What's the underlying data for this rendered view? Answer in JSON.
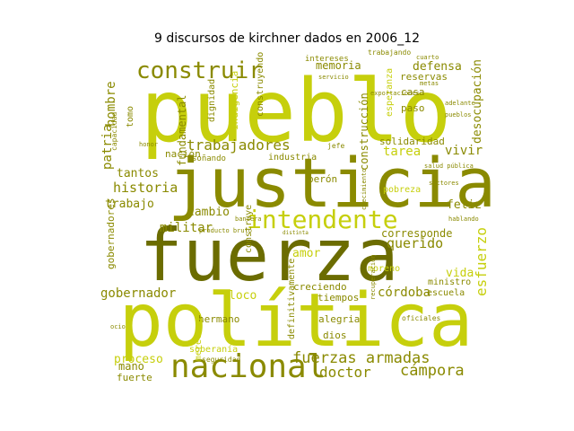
{
  "chart_data": {
    "type": "wordcloud",
    "title": "9 discursos de kirchner dados en 2006_12",
    "palette": {
      "bright": "#c6cf0c",
      "olive": "#8a8a00",
      "mid": "#a6ad0a",
      "dark": "#6b6c00",
      "background": "#ffffff"
    },
    "words": [
      {
        "text": "pueblo",
        "weight": 1.0,
        "color": "bright",
        "orient": "h"
      },
      {
        "text": "justicia",
        "weight": 0.78,
        "color": "olive",
        "orient": "h"
      },
      {
        "text": "fuerza",
        "weight": 0.78,
        "color": "dark",
        "orient": "h"
      },
      {
        "text": "política",
        "weight": 0.78,
        "color": "bright",
        "orient": "h"
      },
      {
        "text": "nacional",
        "weight": 0.42,
        "color": "olive",
        "orient": "h"
      },
      {
        "text": "intendente",
        "weight": 0.36,
        "color": "bright",
        "orient": "h"
      },
      {
        "text": "construir",
        "weight": 0.3,
        "color": "olive",
        "orient": "h"
      },
      {
        "text": "fuerzas armadas",
        "weight": 0.18,
        "color": "olive",
        "orient": "h"
      },
      {
        "text": "trabajadores",
        "weight": 0.17,
        "color": "olive",
        "orient": "h"
      },
      {
        "text": "historia",
        "weight": 0.15,
        "color": "olive",
        "orient": "h"
      },
      {
        "text": "doctor",
        "weight": 0.15,
        "color": "olive",
        "orient": "h"
      },
      {
        "text": "cámpora",
        "weight": 0.15,
        "color": "olive",
        "orient": "h"
      },
      {
        "text": "querido",
        "weight": 0.14,
        "color": "olive",
        "orient": "h"
      },
      {
        "text": "esfuerzo",
        "weight": 0.14,
        "color": "bright",
        "orient": "v"
      },
      {
        "text": "gobernador",
        "weight": 0.12,
        "color": "olive",
        "orient": "h"
      },
      {
        "text": "córdoba",
        "weight": 0.12,
        "color": "olive",
        "orient": "h"
      },
      {
        "text": "militar",
        "weight": 0.12,
        "color": "olive",
        "orient": "h"
      },
      {
        "text": "tarea",
        "weight": 0.12,
        "color": "bright",
        "orient": "h"
      },
      {
        "text": "vivir",
        "weight": 0.12,
        "color": "olive",
        "orient": "h"
      },
      {
        "text": "feliz",
        "weight": 0.1,
        "color": "olive",
        "orient": "h"
      },
      {
        "text": "patria",
        "weight": 0.12,
        "color": "olive",
        "orient": "v"
      },
      {
        "text": "hombre",
        "weight": 0.11,
        "color": "olive",
        "orient": "v"
      },
      {
        "text": "defensa",
        "weight": 0.11,
        "color": "olive",
        "orient": "h"
      },
      {
        "text": "memoria",
        "weight": 0.1,
        "color": "olive",
        "orient": "h"
      },
      {
        "text": "desocupación",
        "weight": 0.1,
        "color": "olive",
        "orient": "v"
      },
      {
        "text": "construcción",
        "weight": 0.1,
        "color": "olive",
        "orient": "v"
      },
      {
        "text": "trabajo",
        "weight": 0.1,
        "color": "olive",
        "orient": "h"
      },
      {
        "text": "tantos",
        "weight": 0.1,
        "color": "olive",
        "orient": "h"
      },
      {
        "text": "cambio",
        "weight": 0.1,
        "color": "olive",
        "orient": "h"
      },
      {
        "text": "vida",
        "weight": 0.1,
        "color": "bright",
        "orient": "h"
      },
      {
        "text": "proceso",
        "weight": 0.1,
        "color": "bright",
        "orient": "h"
      },
      {
        "text": "amor",
        "weight": 0.1,
        "color": "bright",
        "orient": "h"
      },
      {
        "text": "corresponde",
        "weight": 0.09,
        "color": "olive",
        "orient": "h"
      },
      {
        "text": "mano",
        "weight": 0.09,
        "color": "olive",
        "orient": "h"
      },
      {
        "text": "fuerte",
        "weight": 0.08,
        "color": "olive",
        "orient": "h"
      },
      {
        "text": "solidaridad",
        "weight": 0.08,
        "color": "olive",
        "orient": "h"
      },
      {
        "text": "reservas",
        "weight": 0.08,
        "color": "olive",
        "orient": "h"
      },
      {
        "text": "casa",
        "weight": 0.08,
        "color": "olive",
        "orient": "h"
      },
      {
        "text": "paso",
        "weight": 0.08,
        "color": "olive",
        "orient": "h"
      },
      {
        "text": "perón",
        "weight": 0.08,
        "color": "olive",
        "orient": "h"
      },
      {
        "text": "nación",
        "weight": 0.08,
        "color": "olive",
        "orient": "h"
      },
      {
        "text": "fundamental",
        "weight": 0.08,
        "color": "olive",
        "orient": "v"
      },
      {
        "text": "tomo",
        "weight": 0.07,
        "color": "olive",
        "orient": "v"
      },
      {
        "text": "dignidad",
        "weight": 0.07,
        "color": "olive",
        "orient": "v"
      },
      {
        "text": "indigencia",
        "weight": 0.07,
        "color": "bright",
        "orient": "v"
      },
      {
        "text": "construyendo",
        "weight": 0.07,
        "color": "olive",
        "orient": "v"
      },
      {
        "text": "esperanza",
        "weight": 0.07,
        "color": "bright",
        "orient": "v"
      },
      {
        "text": "pobreza",
        "weight": 0.07,
        "color": "bright",
        "orient": "h"
      },
      {
        "text": "industria",
        "weight": 0.07,
        "color": "olive",
        "orient": "h"
      },
      {
        "text": "soñando",
        "weight": 0.06,
        "color": "olive",
        "orient": "h"
      },
      {
        "text": "gobernadores",
        "weight": 0.07,
        "color": "olive",
        "orient": "v"
      },
      {
        "text": "loco",
        "weight": 0.08,
        "color": "bright",
        "orient": "h"
      },
      {
        "text": "tiempos",
        "weight": 0.07,
        "color": "olive",
        "orient": "h"
      },
      {
        "text": "creciendo",
        "weight": 0.07,
        "color": "olive",
        "orient": "h"
      },
      {
        "text": "escuela",
        "weight": 0.07,
        "color": "olive",
        "orient": "h"
      },
      {
        "text": "ministro",
        "weight": 0.06,
        "color": "olive",
        "orient": "h"
      },
      {
        "text": "moreno",
        "weight": 0.06,
        "color": "bright",
        "orient": "h"
      },
      {
        "text": "dios",
        "weight": 0.07,
        "color": "olive",
        "orient": "h"
      },
      {
        "text": "alegria",
        "weight": 0.07,
        "color": "olive",
        "orient": "h"
      },
      {
        "text": "hermano",
        "weight": 0.07,
        "color": "olive",
        "orient": "h"
      },
      {
        "text": "definitivamente",
        "weight": 0.07,
        "color": "olive",
        "orient": "v"
      },
      {
        "text": "construye",
        "weight": 0.06,
        "color": "olive",
        "orient": "v"
      },
      {
        "text": "merecemos",
        "weight": 0.06,
        "color": "bright",
        "orient": "v"
      },
      {
        "text": "soberanía",
        "weight": 0.06,
        "color": "bright",
        "orient": "h"
      },
      {
        "text": "seguridad",
        "weight": 0.05,
        "color": "olive",
        "orient": "h"
      },
      {
        "text": "oficiales",
        "weight": 0.05,
        "color": "olive",
        "orient": "h"
      },
      {
        "text": "intereses",
        "weight": 0.05,
        "color": "olive",
        "orient": "h"
      },
      {
        "text": "capacidad",
        "weight": 0.05,
        "color": "olive",
        "orient": "v"
      },
      {
        "text": "servicio",
        "weight": 0.04,
        "color": "olive",
        "orient": "h"
      },
      {
        "text": "salud pública",
        "weight": 0.04,
        "color": "olive",
        "orient": "h"
      },
      {
        "text": "bandera",
        "weight": 0.04,
        "color": "olive",
        "orient": "h"
      },
      {
        "text": "distinta",
        "weight": 0.04,
        "color": "olive",
        "orient": "h"
      },
      {
        "text": "ocio",
        "weight": 0.04,
        "color": "olive",
        "orient": "h"
      },
      {
        "text": "honor",
        "weight": 0.04,
        "color": "olive",
        "orient": "h"
      },
      {
        "text": "trabajando",
        "weight": 0.04,
        "color": "olive",
        "orient": "h"
      },
      {
        "text": "cuarto",
        "weight": 0.04,
        "color": "olive",
        "orient": "h"
      },
      {
        "text": "producto bruto",
        "weight": 0.04,
        "color": "olive",
        "orient": "h"
      },
      {
        "text": "exportaciones",
        "weight": 0.04,
        "color": "olive",
        "orient": "h"
      },
      {
        "text": "crecimiento",
        "weight": 0.04,
        "color": "olive",
        "orient": "v"
      },
      {
        "text": "recuperación",
        "weight": 0.04,
        "color": "olive",
        "orient": "v"
      },
      {
        "text": "jefe",
        "weight": 0.04,
        "color": "olive",
        "orient": "h"
      },
      {
        "text": "metas",
        "weight": 0.04,
        "color": "olive",
        "orient": "h"
      },
      {
        "text": "adelante",
        "weight": 0.04,
        "color": "olive",
        "orient": "h"
      },
      {
        "text": "pueblos",
        "weight": 0.04,
        "color": "olive",
        "orient": "h"
      },
      {
        "text": "sectores",
        "weight": 0.04,
        "color": "olive",
        "orient": "h"
      },
      {
        "text": "hablando",
        "weight": 0.04,
        "color": "olive",
        "orient": "h"
      }
    ]
  }
}
